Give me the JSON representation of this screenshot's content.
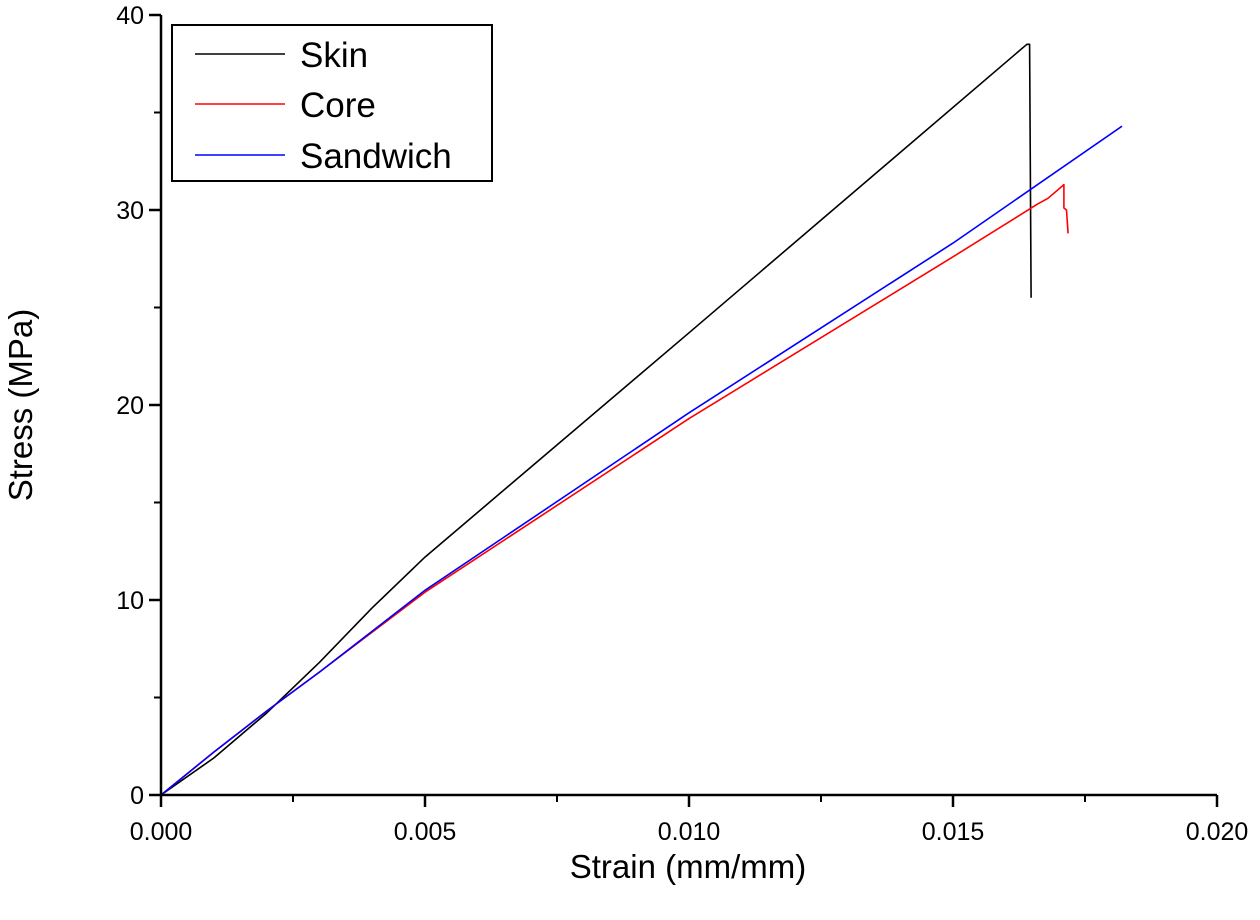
{
  "chart_data": {
    "type": "line",
    "title": "",
    "xlabel": "Strain (mm/mm)",
    "ylabel": "Stress (MPa)",
    "xlim": [
      0,
      0.02
    ],
    "ylim": [
      0,
      40
    ],
    "xticks": [
      0.0,
      0.005,
      0.01,
      0.015,
      0.02
    ],
    "xtick_labels": [
      "0.000",
      "0.005",
      "0.010",
      "0.015",
      "0.020"
    ],
    "yticks": [
      0,
      10,
      20,
      30,
      40
    ],
    "ytick_labels": [
      "0",
      "10",
      "20",
      "30",
      "40"
    ],
    "grid": false,
    "legend_position": "top-left",
    "series": [
      {
        "name": "Skin",
        "color": "#000000",
        "x": [
          0,
          0.001,
          0.002,
          0.003,
          0.004,
          0.005,
          0.01,
          0.0164,
          0.01645,
          0.01648
        ],
        "y": [
          0,
          1.9,
          4.2,
          6.8,
          9.6,
          12.2,
          23.7,
          38.5,
          38.5,
          25.5
        ]
      },
      {
        "name": "Core",
        "color": "#ff0000",
        "x": [
          0,
          0.001,
          0.002,
          0.003,
          0.005,
          0.01,
          0.015,
          0.0166,
          0.0168,
          0.0171,
          0.0171,
          0.01715,
          0.01718
        ],
        "y": [
          0,
          2.2,
          4.3,
          6.3,
          10.4,
          19.3,
          27.6,
          30.3,
          30.6,
          31.3,
          30.1,
          30.0,
          28.8
        ]
      },
      {
        "name": "Sandwich",
        "color": "#0000ff",
        "x": [
          0,
          0.001,
          0.002,
          0.003,
          0.005,
          0.01,
          0.015,
          0.0182
        ],
        "y": [
          0,
          2.2,
          4.3,
          6.3,
          10.5,
          19.6,
          28.3,
          34.3
        ]
      }
    ]
  }
}
